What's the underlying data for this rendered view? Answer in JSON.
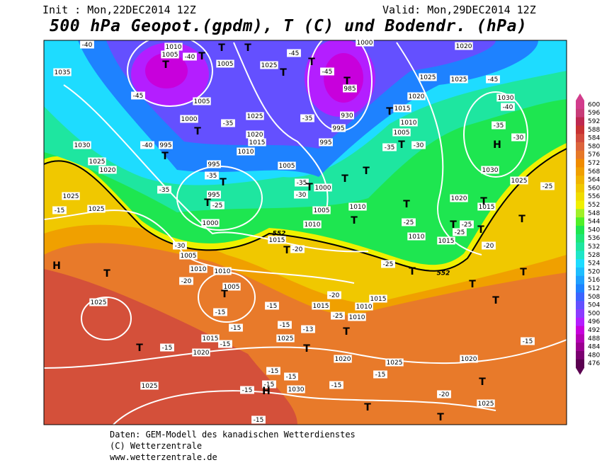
{
  "header": {
    "init": "Init : Mon,22DEC2014 12Z",
    "valid": "Valid: Mon,29DEC2014 12Z",
    "title": "500 hPa Geopot.(gpdm), T (C) und Bodendr. (hPa)"
  },
  "colorbar": {
    "levels": [
      476,
      480,
      484,
      488,
      492,
      496,
      500,
      504,
      508,
      512,
      516,
      520,
      524,
      528,
      532,
      536,
      540,
      544,
      548,
      552,
      556,
      560,
      564,
      568,
      572,
      576,
      580,
      584,
      588,
      592,
      596,
      600
    ],
    "colors": [
      "#5a0050",
      "#7a0070",
      "#9a0090",
      "#b400b4",
      "#c800dc",
      "#b41eff",
      "#8c3cff",
      "#6450ff",
      "#3c64ff",
      "#1e82ff",
      "#1ea0ff",
      "#1ebeff",
      "#1edcff",
      "#1ee6c8",
      "#1ee6a0",
      "#1ee678",
      "#1ee650",
      "#50f028",
      "#a0f028",
      "#f0f000",
      "#f0dc00",
      "#f0c800",
      "#f0b400",
      "#f0a000",
      "#f08c00",
      "#e67828",
      "#dc643c",
      "#d24b3c",
      "#c83232",
      "#be2850",
      "#c83c78",
      "#d23c8c"
    ]
  },
  "map": {
    "pressure_labels": [
      "1035",
      "1010",
      "1005",
      "1005",
      "1025",
      "1000",
      "1020",
      "1025",
      "1025",
      "985",
      "1020",
      "1030",
      "1005",
      "1000",
      "1025",
      "930",
      "1015",
      "1010",
      "1005",
      "995",
      "995",
      "1015",
      "1020",
      "1010",
      "995",
      "1030",
      "1025",
      "1020",
      "995",
      "1005",
      "1030",
      "1025",
      "1000",
      "995",
      "1020",
      "1015",
      "1025",
      "1025",
      "1005",
      "1010",
      "1010",
      "1000",
      "1015",
      "1010",
      "1015",
      "1005",
      "1010",
      "1010",
      "1005",
      "1025",
      "1015",
      "1010",
      "1015",
      "1010",
      "1025",
      "1015",
      "1020",
      "1020",
      "1025",
      "1020",
      "1030",
      "1025",
      "1025"
    ],
    "temperature_labels": [
      "-40",
      "-40",
      "-45",
      "-45",
      "-45",
      "-45",
      "-40",
      "-35",
      "-35",
      "-35",
      "-30",
      "-40",
      "-35",
      "-30",
      "-35",
      "-35",
      "-35",
      "-30",
      "-25",
      "-25",
      "-25",
      "-25",
      "-20",
      "-30",
      "-20",
      "-25",
      "-20",
      "-15",
      "-15",
      "-20",
      "-25",
      "-15",
      "-15",
      "-13",
      "-15",
      "-15",
      "-15",
      "-15",
      "-15",
      "-15",
      "-15",
      "-15",
      "-15",
      "-20",
      "-15",
      "-25",
      "-15"
    ],
    "contour_labels": [
      "552",
      "552"
    ],
    "centers": [
      "T",
      "T",
      "T",
      "T",
      "T",
      "T",
      "T",
      "T",
      "T",
      "T",
      "T",
      "T",
      "T",
      "T",
      "T",
      "T",
      "T",
      "T",
      "T",
      "T",
      "T",
      "T",
      "T",
      "T",
      "T",
      "T",
      "T",
      "T",
      "T",
      "T",
      "T",
      "T",
      "T",
      "T",
      "T",
      "H",
      "H",
      "H"
    ]
  },
  "footer": {
    "lines": [
      "Daten: GEM-Modell des kanadischen Wetterdienstes",
      "(C) Wetterzentrale",
      "www.wetterzentrale.de"
    ]
  }
}
